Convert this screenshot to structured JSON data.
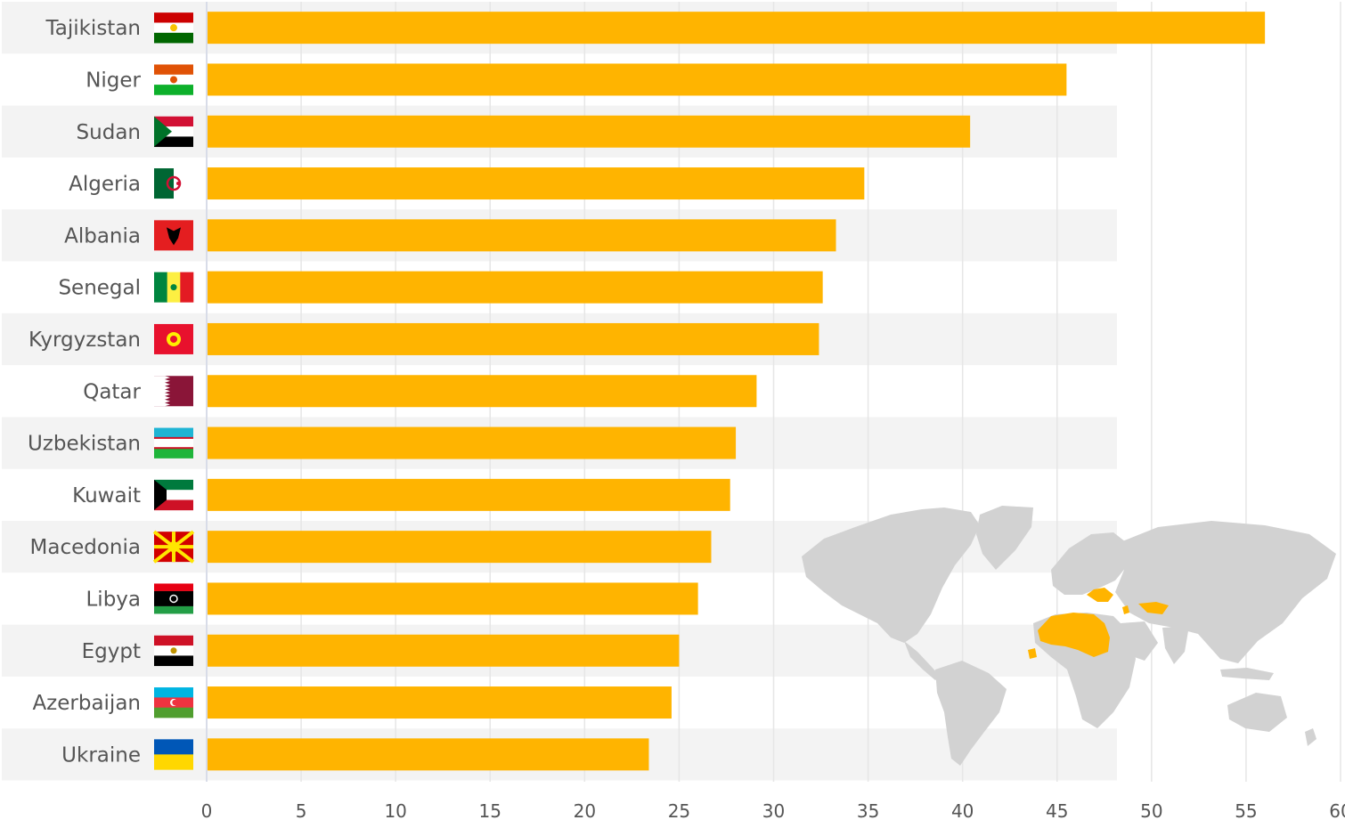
{
  "colors": {
    "bar": "#FFB400",
    "band": "#F3F3F3",
    "grid": "#E6E6E6",
    "axis": "#D8DCE8",
    "map_land": "#D2D2D2",
    "map_highlight": "#FFB400"
  },
  "chart_data": {
    "type": "bar",
    "orientation": "horizontal",
    "categories": [
      "Tajikistan",
      "Niger",
      "Sudan",
      "Algeria",
      "Albania",
      "Senegal",
      "Kyrgyzstan",
      "Qatar",
      "Uzbekistan",
      "Kuwait",
      "Macedonia",
      "Libya",
      "Egypt",
      "Azerbaijan",
      "Ukraine"
    ],
    "values": [
      56,
      45.5,
      40.4,
      34.8,
      33.3,
      32.6,
      32.4,
      29.1,
      28.0,
      27.7,
      26.7,
      26.0,
      25.0,
      24.6,
      23.4
    ],
    "xlim": [
      0,
      60
    ],
    "xticks": [
      "0",
      "5",
      "10",
      "15",
      "20",
      "25",
      "30",
      "35",
      "40",
      "45",
      "50",
      "55",
      "60"
    ],
    "grid": true,
    "title": "",
    "xlabel": "",
    "ylabel": ""
  },
  "flags": [
    "tajikistan-flag-icon",
    "niger-flag-icon",
    "sudan-flag-icon",
    "algeria-flag-icon",
    "albania-flag-icon",
    "senegal-flag-icon",
    "kyrgyzstan-flag-icon",
    "qatar-flag-icon",
    "uzbekistan-flag-icon",
    "kuwait-flag-icon",
    "macedonia-flag-icon",
    "libya-flag-icon",
    "egypt-flag-icon",
    "azerbaijan-flag-icon",
    "ukraine-flag-icon"
  ],
  "map": {
    "icon": "world-map-icon",
    "highlighted": [
      "North Africa",
      "Sahel",
      "Balkans",
      "Central Asia",
      "Gulf"
    ]
  }
}
